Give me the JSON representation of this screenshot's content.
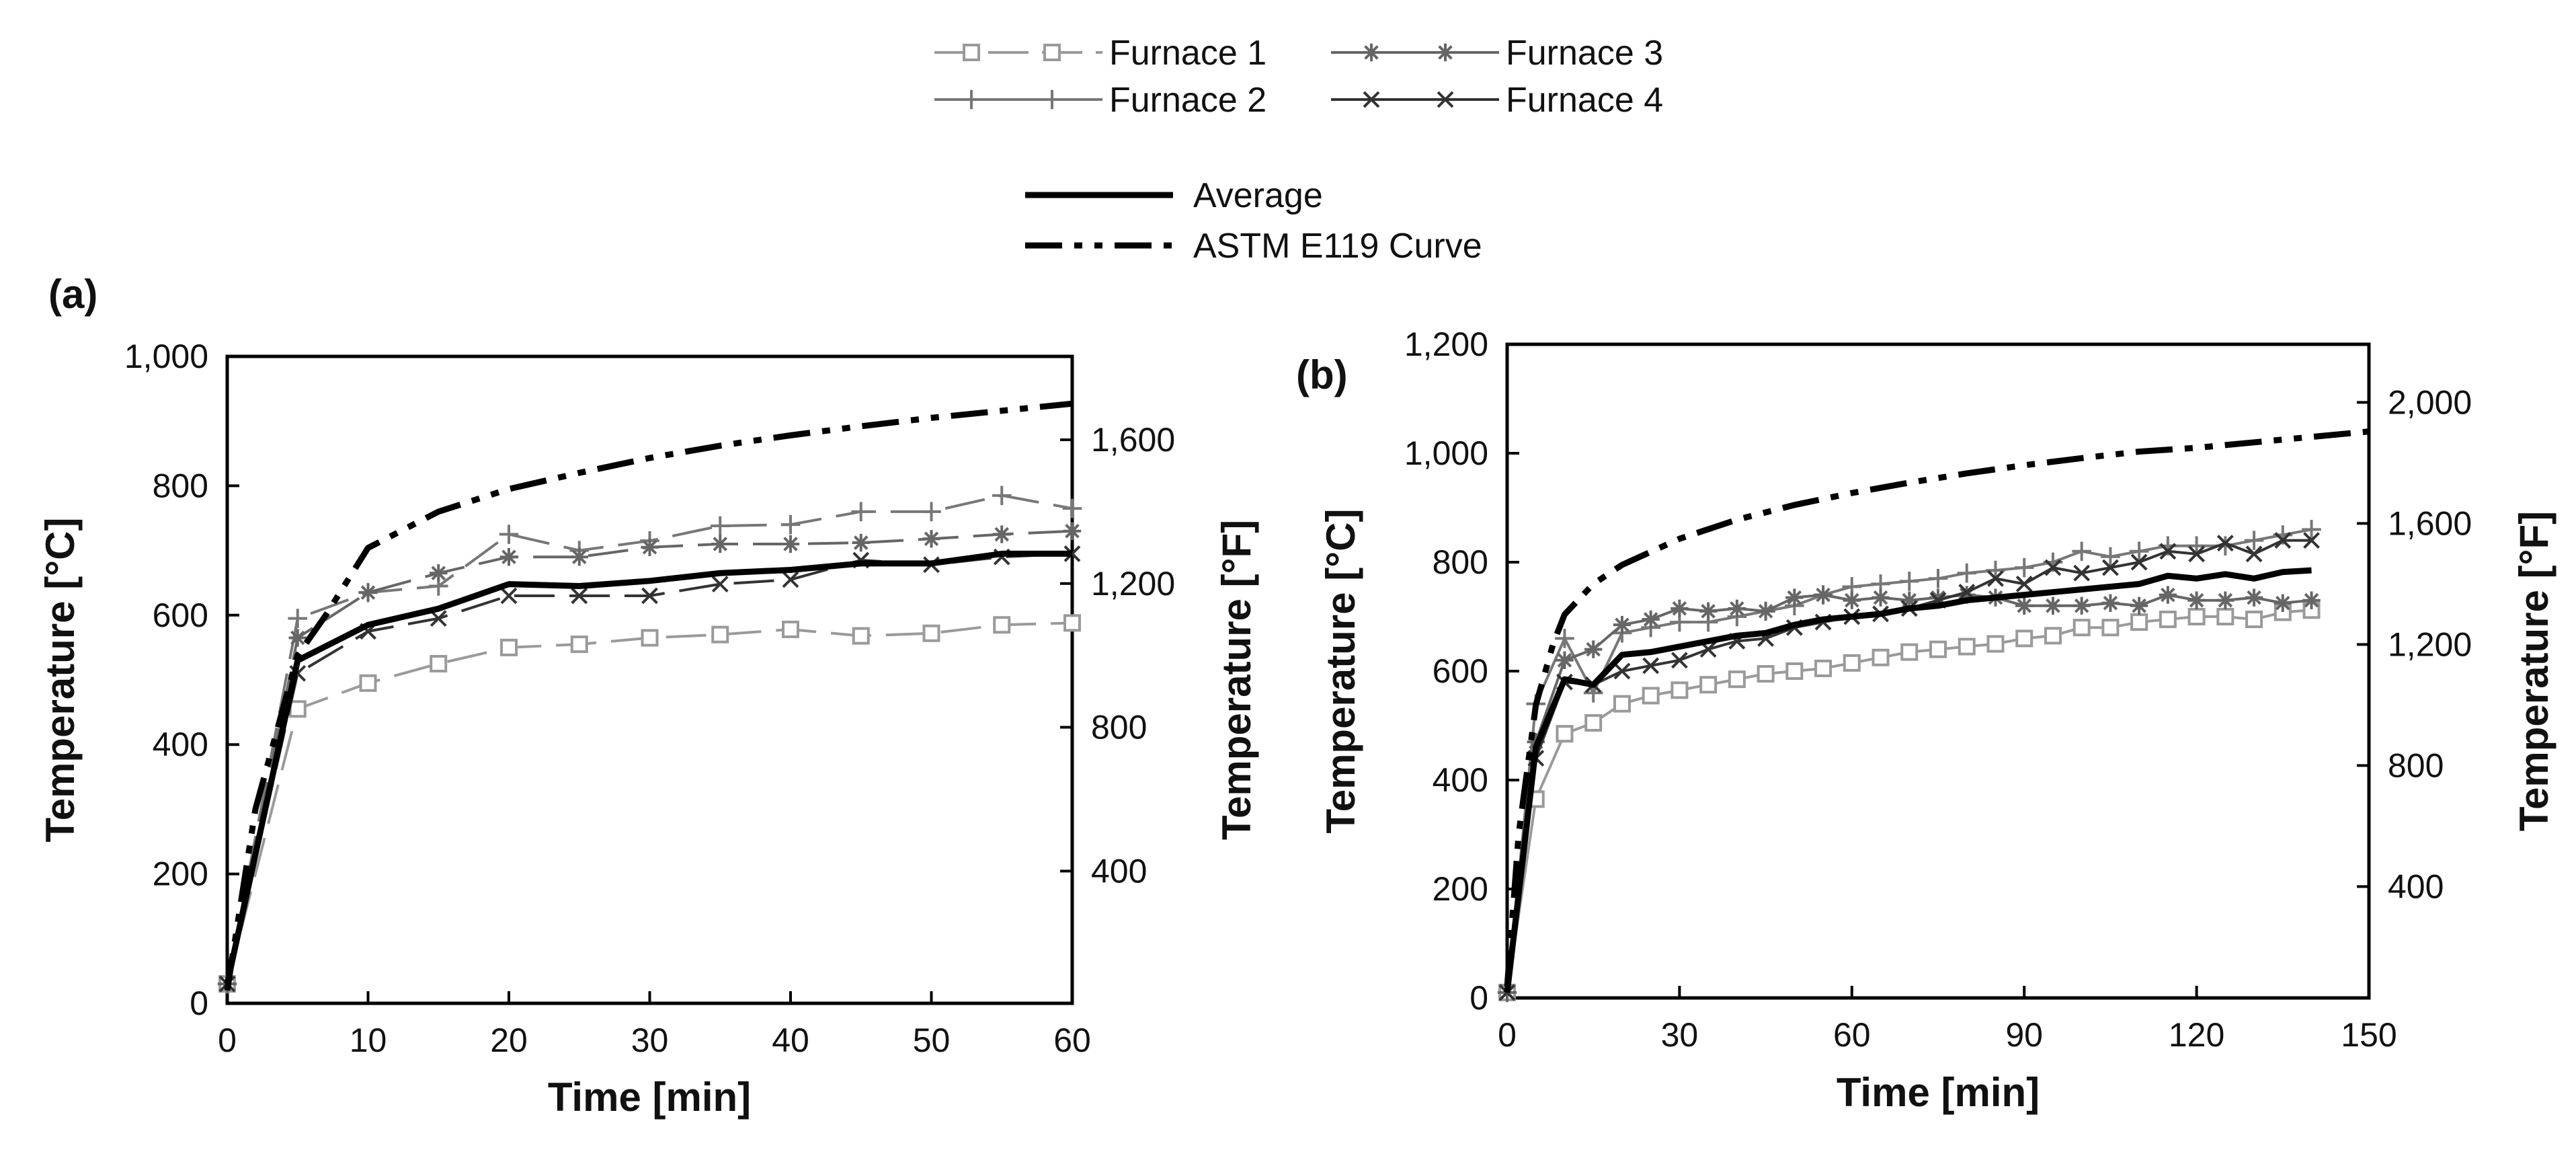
{
  "legend": {
    "furnaces": [
      {
        "name": "Furnace 1",
        "marker": "square",
        "color": "#9a9a9a"
      },
      {
        "name": "Furnace 3",
        "marker": "asterisk",
        "color": "#666666"
      },
      {
        "name": "Furnace 2",
        "marker": "plus",
        "color": "#777777"
      },
      {
        "name": "Furnace 4",
        "marker": "cross",
        "color": "#333333"
      }
    ],
    "lines": [
      {
        "name": "Average",
        "style": "solid"
      },
      {
        "name": "ASTM E119 Curve",
        "style": "dash-dot-dot"
      }
    ]
  },
  "chart_data": [
    {
      "panel": "(a)",
      "type": "line",
      "xlabel": "Time [min]",
      "ylabel": "Temperature [°C]",
      "y2label": "Temperature [°F]",
      "xlim": [
        0,
        60
      ],
      "ylim": [
        0,
        1000
      ],
      "y2lim": [
        32,
        1832
      ],
      "xticks": [
        0,
        10,
        20,
        30,
        40,
        50,
        60
      ],
      "xtick_labels": [
        "0",
        "10",
        "20",
        "30",
        "40",
        "50",
        "60"
      ],
      "yticks": [
        0,
        200,
        400,
        600,
        800,
        1000
      ],
      "ytick_labels": [
        "0",
        "200",
        "400",
        "600",
        "800",
        "1,000"
      ],
      "y2ticks": [
        400,
        800,
        1200,
        1600
      ],
      "y2tick_labels": [
        "400",
        "800",
        "1,200",
        "1,600"
      ],
      "series": [
        {
          "name": "Furnace 1",
          "marker": "square",
          "dash": "long",
          "x": [
            0,
            5,
            10,
            15,
            20,
            25,
            30,
            35,
            40,
            45,
            50,
            55,
            60
          ],
          "y": [
            30,
            455,
            495,
            525,
            550,
            555,
            565,
            570,
            578,
            568,
            572,
            585,
            588
          ]
        },
        {
          "name": "Furnace 2",
          "marker": "plus",
          "dash": "long",
          "x": [
            0,
            5,
            10,
            15,
            20,
            25,
            30,
            35,
            40,
            45,
            50,
            55,
            60
          ],
          "y": [
            30,
            595,
            635,
            645,
            725,
            700,
            715,
            738,
            740,
            760,
            760,
            785,
            765
          ]
        },
        {
          "name": "Furnace 3",
          "marker": "asterisk",
          "dash": "long",
          "x": [
            0,
            5,
            10,
            15,
            20,
            25,
            30,
            35,
            40,
            45,
            50,
            55,
            60
          ],
          "y": [
            30,
            565,
            635,
            665,
            690,
            690,
            705,
            710,
            710,
            712,
            718,
            725,
            730
          ]
        },
        {
          "name": "Furnace 4",
          "marker": "cross",
          "dash": "long",
          "x": [
            0,
            5,
            10,
            15,
            20,
            25,
            30,
            35,
            40,
            45,
            50,
            55,
            60
          ],
          "y": [
            30,
            510,
            575,
            595,
            630,
            630,
            630,
            648,
            655,
            685,
            678,
            690,
            695
          ]
        },
        {
          "name": "Average",
          "marker": "none",
          "dash": "solid",
          "x": [
            0,
            5,
            10,
            15,
            20,
            25,
            30,
            35,
            40,
            45,
            50,
            55,
            60
          ],
          "y": [
            30,
            530,
            585,
            610,
            648,
            645,
            653,
            665,
            670,
            680,
            680,
            695,
            695
          ]
        },
        {
          "name": "ASTM E119 Curve",
          "marker": "none",
          "dash": "dashdotdot",
          "x": [
            0,
            2,
            5,
            7,
            10,
            15,
            20,
            25,
            30,
            35,
            40,
            45,
            50,
            55,
            60
          ],
          "y": [
            20,
            300,
            538,
            600,
            704,
            760,
            795,
            820,
            843,
            862,
            878,
            892,
            905,
            916,
            927
          ]
        }
      ]
    },
    {
      "panel": "(b)",
      "type": "line",
      "xlabel": "Time [min]",
      "ylabel": "Temperature [°C]",
      "y2label": "Temperature [°F]",
      "xlim": [
        0,
        150
      ],
      "ylim": [
        0,
        1200
      ],
      "y2lim": [
        32,
        2192
      ],
      "xticks": [
        0,
        30,
        60,
        90,
        120,
        150
      ],
      "xtick_labels": [
        "0",
        "30",
        "60",
        "90",
        "120",
        "150"
      ],
      "yticks": [
        0,
        200,
        400,
        600,
        800,
        1000,
        1200
      ],
      "ytick_labels": [
        "0",
        "200",
        "400",
        "600",
        "800",
        "1,000",
        "1,200"
      ],
      "y2ticks": [
        400,
        800,
        1200,
        1600,
        2000
      ],
      "y2tick_labels": [
        "400",
        "800",
        "1,200",
        "1,600",
        "2,000"
      ],
      "series": [
        {
          "name": "Furnace 1",
          "marker": "square",
          "dash": "solid",
          "x": [
            0,
            5,
            10,
            15,
            20,
            25,
            30,
            35,
            40,
            45,
            50,
            55,
            60,
            65,
            70,
            75,
            80,
            85,
            90,
            95,
            100,
            105,
            110,
            115,
            120,
            125,
            130,
            135,
            140
          ],
          "y": [
            10,
            365,
            485,
            505,
            540,
            555,
            565,
            575,
            585,
            595,
            600,
            605,
            615,
            625,
            635,
            640,
            645,
            650,
            660,
            665,
            680,
            680,
            690,
            695,
            700,
            700,
            695,
            708,
            712
          ]
        },
        {
          "name": "Furnace 2",
          "marker": "plus",
          "dash": "solid",
          "x": [
            0,
            5,
            10,
            15,
            20,
            25,
            30,
            35,
            40,
            45,
            50,
            55,
            60,
            65,
            70,
            75,
            80,
            85,
            90,
            95,
            100,
            105,
            110,
            115,
            120,
            125,
            130,
            135,
            140
          ],
          "y": [
            10,
            540,
            660,
            560,
            670,
            680,
            690,
            690,
            700,
            710,
            720,
            740,
            755,
            760,
            765,
            770,
            780,
            785,
            790,
            800,
            820,
            810,
            820,
            830,
            830,
            830,
            840,
            850,
            860
          ]
        },
        {
          "name": "Furnace 3",
          "marker": "asterisk",
          "dash": "solid",
          "x": [
            0,
            5,
            10,
            15,
            20,
            25,
            30,
            35,
            40,
            45,
            50,
            55,
            60,
            65,
            70,
            75,
            80,
            85,
            90,
            95,
            100,
            105,
            110,
            115,
            120,
            125,
            130,
            135,
            140
          ],
          "y": [
            10,
            470,
            620,
            640,
            685,
            695,
            715,
            710,
            715,
            710,
            735,
            740,
            730,
            735,
            730,
            735,
            740,
            735,
            720,
            720,
            720,
            725,
            720,
            740,
            730,
            730,
            735,
            725,
            730
          ]
        },
        {
          "name": "Furnace 4",
          "marker": "cross",
          "dash": "solid",
          "x": [
            0,
            5,
            10,
            15,
            20,
            25,
            30,
            35,
            40,
            45,
            50,
            55,
            60,
            65,
            70,
            75,
            80,
            85,
            90,
            95,
            100,
            105,
            110,
            115,
            120,
            125,
            130,
            135,
            140
          ],
          "y": [
            10,
            440,
            580,
            575,
            600,
            610,
            620,
            640,
            655,
            660,
            680,
            690,
            700,
            705,
            715,
            730,
            745,
            770,
            760,
            790,
            780,
            790,
            800,
            820,
            815,
            835,
            815,
            840,
            840
          ]
        },
        {
          "name": "Average",
          "marker": "none",
          "dash": "solid",
          "x": [
            0,
            5,
            10,
            15,
            20,
            25,
            30,
            35,
            40,
            45,
            50,
            55,
            60,
            65,
            70,
            75,
            80,
            85,
            90,
            95,
            100,
            105,
            110,
            115,
            120,
            125,
            130,
            135,
            140
          ],
          "y": [
            10,
            460,
            585,
            575,
            630,
            635,
            645,
            655,
            665,
            670,
            685,
            695,
            700,
            705,
            715,
            720,
            730,
            735,
            740,
            745,
            750,
            755,
            760,
            775,
            770,
            778,
            770,
            782,
            785
          ]
        },
        {
          "name": "ASTM E119 Curve",
          "marker": "none",
          "dash": "dashdotdot",
          "x": [
            0,
            2,
            5,
            8,
            10,
            15,
            20,
            30,
            40,
            50,
            60,
            70,
            80,
            90,
            100,
            110,
            120,
            130,
            140,
            150
          ],
          "y": [
            20,
            300,
            538,
            650,
            704,
            760,
            795,
            843,
            878,
            905,
            927,
            946,
            963,
            978,
            991,
            1003,
            1010,
            1020,
            1030,
            1040
          ]
        }
      ]
    }
  ],
  "colors": {
    "Furnace 1": "#9a9a9a",
    "Furnace 2": "#777777",
    "Furnace 3": "#666666",
    "Furnace 4": "#333333",
    "Average": "#000000",
    "ASTM E119 Curve": "#000000"
  }
}
